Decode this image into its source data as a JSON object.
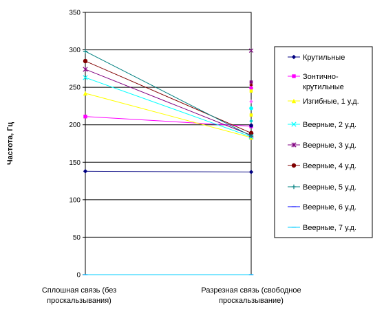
{
  "chart_data": {
    "type": "line",
    "ylabel": "Частота, Гц",
    "xlabel": "",
    "ylim": [
      0,
      350
    ],
    "yticks": [
      "0",
      "50",
      "100",
      "150",
      "200",
      "250",
      "300",
      "350"
    ],
    "ytick_values": [
      0,
      50,
      100,
      150,
      200,
      250,
      300,
      350
    ],
    "categories": [
      [
        "Сплошная связь (без",
        "проскальзывания)"
      ],
      [
        "Разрезная связь (свободное",
        "проскальзывание)"
      ]
    ],
    "grid": true,
    "legend_position": "right",
    "series": [
      {
        "name": "Крутильные",
        "values": [
          138,
          137
        ],
        "color": "#000080",
        "marker": "diamond"
      },
      {
        "name": "Зонтично-крутильные",
        "values": [
          211,
          198
        ],
        "color": "#ff00ff",
        "marker": "square"
      },
      {
        "name": "Изгибные, 1 у.д.",
        "values": [
          242,
          183
        ],
        "color": "#ffff00",
        "marker": "triangle"
      },
      {
        "name": "Веерные, 2 у.д.",
        "values": [
          263,
          184
        ],
        "color": "#00ffff",
        "marker": "x"
      },
      {
        "name": "Веерные, 3 у.д.",
        "values": [
          274,
          186
        ],
        "color": "#800080",
        "marker": "star"
      },
      {
        "name": "Веерные, 4 у.д.",
        "values": [
          285,
          189
        ],
        "color": "#800000",
        "marker": "circle"
      },
      {
        "name": "Веерные, 5 у.д.",
        "values": [
          298,
          185
        ],
        "color": "#008080",
        "marker": "plus"
      },
      {
        "name": "Веерные, 6 у.д.",
        "values": [
          0,
          0
        ],
        "color": "#0000ff",
        "marker": "dash"
      },
      {
        "name": "Веерные, 7 у.д.",
        "values": [
          0,
          0
        ],
        "color": "#00ccff",
        "marker": "dash"
      }
    ],
    "scatter_column": {
      "values": [
        299,
        257,
        253,
        249,
        245,
        231,
        222,
        213,
        205,
        199
      ],
      "colors": [
        "#800080",
        "#800080",
        "#800000",
        "#ff00ff",
        "#ffff00",
        "#ff66ff",
        "#00ffff",
        "#ffff00",
        "#00cccc",
        "#000080"
      ]
    }
  }
}
